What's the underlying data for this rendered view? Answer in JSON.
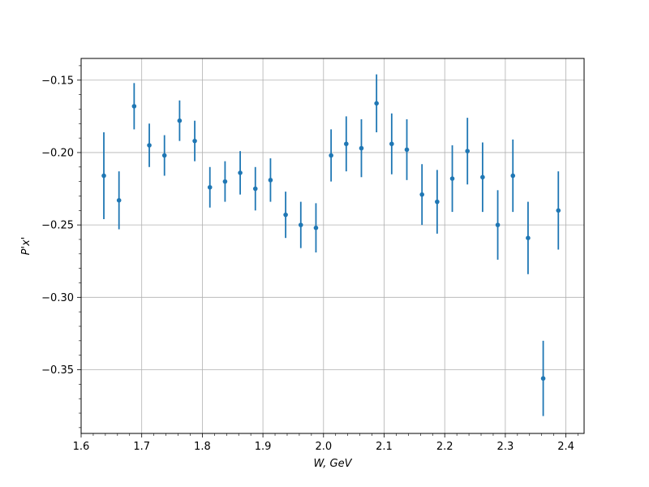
{
  "chart_data": {
    "type": "scatter",
    "title": "",
    "xlabel": "W, GeV",
    "ylabel": "P'x'",
    "xlim": [
      1.6,
      2.43
    ],
    "ylim": [
      -0.394,
      -0.135
    ],
    "grid": true,
    "color": "#1f77b4",
    "x_ticks": [
      1.6,
      1.7,
      1.8,
      1.9,
      2.0,
      2.1,
      2.2,
      2.3,
      2.4
    ],
    "x_tick_labels": [
      "1.6",
      "1.7",
      "1.8",
      "1.9",
      "2.0",
      "2.1",
      "2.2",
      "2.3",
      "2.4"
    ],
    "y_ticks": [
      -0.35,
      -0.3,
      -0.25,
      -0.2,
      -0.15
    ],
    "y_tick_labels": [
      "−0.35",
      "−0.30",
      "−0.25",
      "−0.20",
      "−0.15"
    ],
    "series": [
      {
        "points": [
          {
            "x": 1.6375,
            "y": -0.216,
            "err": 0.03
          },
          {
            "x": 1.6625,
            "y": -0.233,
            "err": 0.02
          },
          {
            "x": 1.6875,
            "y": -0.168,
            "err": 0.016
          },
          {
            "x": 1.7125,
            "y": -0.195,
            "err": 0.015
          },
          {
            "x": 1.7375,
            "y": -0.202,
            "err": 0.014
          },
          {
            "x": 1.7625,
            "y": -0.178,
            "err": 0.014
          },
          {
            "x": 1.7875,
            "y": -0.192,
            "err": 0.014
          },
          {
            "x": 1.8125,
            "y": -0.224,
            "err": 0.014
          },
          {
            "x": 1.8375,
            "y": -0.22,
            "err": 0.014
          },
          {
            "x": 1.8625,
            "y": -0.214,
            "err": 0.015
          },
          {
            "x": 1.8875,
            "y": -0.225,
            "err": 0.015
          },
          {
            "x": 1.9125,
            "y": -0.219,
            "err": 0.015
          },
          {
            "x": 1.9375,
            "y": -0.243,
            "err": 0.016
          },
          {
            "x": 1.9625,
            "y": -0.25,
            "err": 0.016
          },
          {
            "x": 1.9875,
            "y": -0.252,
            "err": 0.017
          },
          {
            "x": 2.0125,
            "y": -0.202,
            "err": 0.018
          },
          {
            "x": 2.0375,
            "y": -0.194,
            "err": 0.019
          },
          {
            "x": 2.0625,
            "y": -0.197,
            "err": 0.02
          },
          {
            "x": 2.0875,
            "y": -0.166,
            "err": 0.02
          },
          {
            "x": 2.1125,
            "y": -0.194,
            "err": 0.021
          },
          {
            "x": 2.1375,
            "y": -0.198,
            "err": 0.021
          },
          {
            "x": 2.1625,
            "y": -0.229,
            "err": 0.021
          },
          {
            "x": 2.1875,
            "y": -0.234,
            "err": 0.022
          },
          {
            "x": 2.2125,
            "y": -0.218,
            "err": 0.023
          },
          {
            "x": 2.2375,
            "y": -0.199,
            "err": 0.023
          },
          {
            "x": 2.2625,
            "y": -0.217,
            "err": 0.024
          },
          {
            "x": 2.2875,
            "y": -0.25,
            "err": 0.024
          },
          {
            "x": 2.3125,
            "y": -0.216,
            "err": 0.025
          },
          {
            "x": 2.3375,
            "y": -0.259,
            "err": 0.025
          },
          {
            "x": 2.3625,
            "y": -0.356,
            "err": 0.026
          },
          {
            "x": 2.3875,
            "y": -0.24,
            "err": 0.027
          }
        ]
      }
    ]
  }
}
